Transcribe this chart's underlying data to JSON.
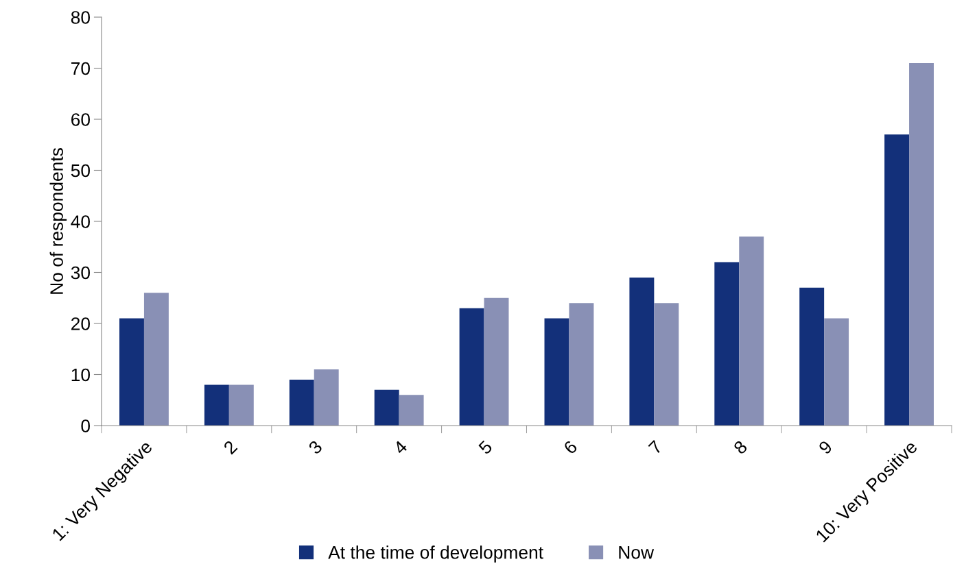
{
  "chart_data": {
    "type": "bar",
    "ylabel": "No of respondents",
    "categories": [
      "1: Very Negative",
      "2",
      "3",
      "4",
      "5",
      "6",
      "7",
      "8",
      "9",
      "10: Very Positive"
    ],
    "series": [
      {
        "name": "At the time of development",
        "color": "#13307a",
        "values": [
          21,
          8,
          9,
          7,
          23,
          21,
          29,
          32,
          27,
          57
        ]
      },
      {
        "name": "Now",
        "color": "#8990b5",
        "values": [
          26,
          8,
          11,
          6,
          25,
          24,
          24,
          37,
          21,
          71
        ]
      }
    ],
    "ylim": [
      0,
      80
    ],
    "yticks": [
      0,
      10,
      20,
      30,
      40,
      50,
      60,
      70,
      80
    ],
    "grid": false,
    "legend": "bottom"
  }
}
